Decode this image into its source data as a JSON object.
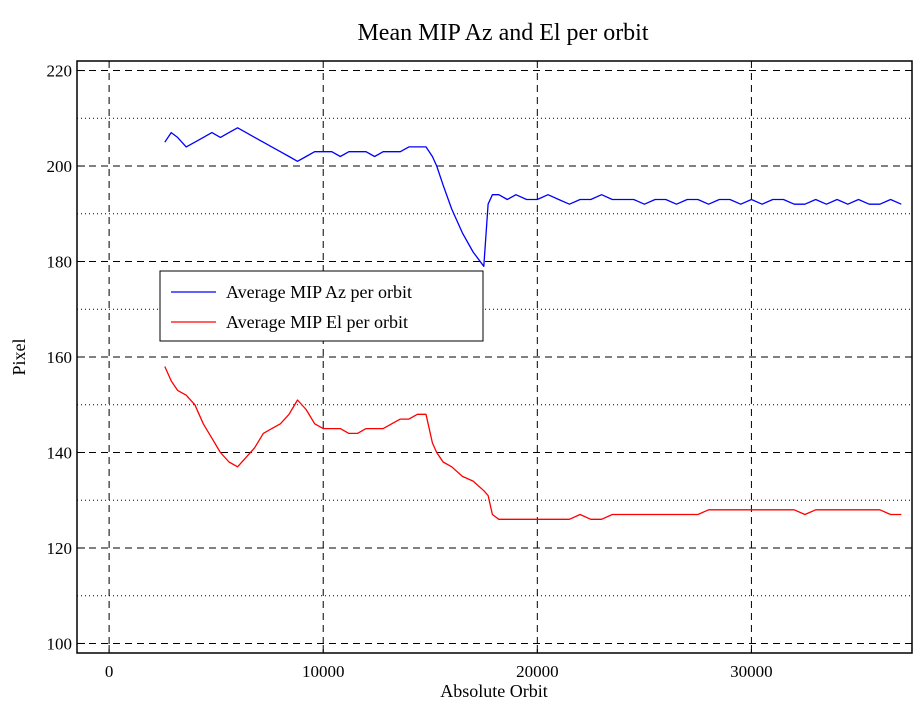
{
  "chart_data": {
    "type": "line",
    "title": "Mean MIP Az and El per orbit",
    "xlabel": "Absolute Orbit",
    "ylabel": "Pixel",
    "xlim": [
      -1500,
      37500
    ],
    "ylim": [
      98,
      222
    ],
    "x_ticks": [
      0,
      10000,
      20000,
      30000
    ],
    "x_tick_labels": [
      "0",
      "10000",
      "20000",
      "30000"
    ],
    "y_ticks": [
      100,
      120,
      140,
      160,
      180,
      200,
      220
    ],
    "y_tick_labels": [
      "100",
      "120",
      "140",
      "160",
      "180",
      "200",
      "220"
    ],
    "y_minor_grid": [
      110,
      130,
      150,
      170,
      190,
      210
    ],
    "grid": true,
    "legend_position": "left-middle",
    "series": [
      {
        "name": "Average MIP Az per orbit",
        "color": "#0000ff",
        "x": [
          2600,
          2900,
          3200,
          3600,
          4000,
          4400,
          4800,
          5200,
          5600,
          6000,
          6400,
          6800,
          7200,
          7600,
          8000,
          8400,
          8800,
          9200,
          9600,
          10000,
          10400,
          10800,
          11200,
          11600,
          12000,
          12400,
          12800,
          13200,
          13600,
          14000,
          14400,
          14800,
          15100,
          15300,
          15600,
          16000,
          16500,
          17000,
          17500,
          17700,
          17900,
          18200,
          18600,
          19000,
          19500,
          20000,
          20500,
          21000,
          21500,
          22000,
          22500,
          23000,
          23500,
          24000,
          24500,
          25000,
          25500,
          26000,
          26500,
          27000,
          27500,
          28000,
          28500,
          29000,
          29500,
          30000,
          30500,
          31000,
          31500,
          32000,
          32500,
          33000,
          33500,
          34000,
          34500,
          35000,
          35500,
          36000,
          36500,
          37000
        ],
        "y": [
          205,
          207,
          206,
          204,
          205,
          206,
          207,
          206,
          207,
          208,
          207,
          206,
          205,
          204,
          203,
          202,
          201,
          202,
          203,
          203,
          203,
          202,
          203,
          203,
          203,
          202,
          203,
          203,
          203,
          204,
          204,
          204,
          202,
          200,
          196,
          191,
          186,
          182,
          179,
          192,
          194,
          194,
          193,
          194,
          193,
          193,
          194,
          193,
          192,
          193,
          193,
          194,
          193,
          193,
          193,
          192,
          193,
          193,
          192,
          193,
          193,
          192,
          193,
          193,
          192,
          193,
          192,
          193,
          193,
          192,
          192,
          193,
          192,
          193,
          192,
          193,
          192,
          192,
          193,
          192
        ]
      },
      {
        "name": "Average MIP El per orbit",
        "color": "#ff0000",
        "x": [
          2600,
          2900,
          3200,
          3600,
          4000,
          4400,
          4800,
          5200,
          5600,
          6000,
          6400,
          6800,
          7200,
          7600,
          8000,
          8400,
          8800,
          9200,
          9600,
          10000,
          10400,
          10800,
          11200,
          11600,
          12000,
          12400,
          12800,
          13200,
          13600,
          14000,
          14400,
          14800,
          15100,
          15300,
          15600,
          16000,
          16500,
          17000,
          17500,
          17700,
          17900,
          18200,
          18600,
          19000,
          19500,
          20000,
          20500,
          21000,
          21500,
          22000,
          22500,
          23000,
          23500,
          24000,
          24500,
          25000,
          25500,
          26000,
          26500,
          27000,
          27500,
          28000,
          28500,
          29000,
          29500,
          30000,
          30500,
          31000,
          31500,
          32000,
          32500,
          33000,
          33500,
          34000,
          34500,
          35000,
          35500,
          36000,
          36500,
          37000
        ],
        "y": [
          158,
          155,
          153,
          152,
          150,
          146,
          143,
          140,
          138,
          137,
          139,
          141,
          144,
          145,
          146,
          148,
          151,
          149,
          146,
          145,
          145,
          145,
          144,
          144,
          145,
          145,
          145,
          146,
          147,
          147,
          148,
          148,
          142,
          140,
          138,
          137,
          135,
          134,
          132,
          131,
          127,
          126,
          126,
          126,
          126,
          126,
          126,
          126,
          126,
          127,
          126,
          126,
          127,
          127,
          127,
          127,
          127,
          127,
          127,
          127,
          127,
          128,
          128,
          128,
          128,
          128,
          128,
          128,
          128,
          128,
          127,
          128,
          128,
          128,
          128,
          128,
          128,
          128,
          127,
          127
        ]
      }
    ]
  }
}
